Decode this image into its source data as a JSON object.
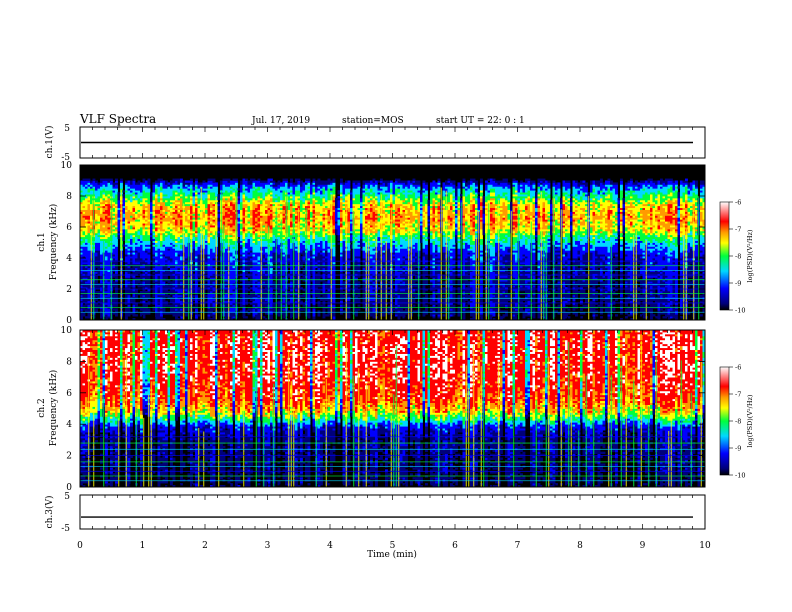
{
  "header": {
    "title": "VLF Spectra",
    "date": "Jul. 17, 2019",
    "station": "station=MOS",
    "start": "start UT = 22: 0 : 1"
  },
  "colors": {
    "black": "#000000",
    "navy": "#00007a",
    "blue": "#0000ff",
    "cyan": "#00d8ff",
    "green": "#00ff3c",
    "yellow": "#ffff00",
    "orange": "#ff9a00",
    "red": "#ff0000",
    "white": "#ffffff"
  },
  "chart_data": [
    {
      "type": "line",
      "id": "ch1-waveform",
      "ylabel": "ch.1(V)",
      "ylim": [
        -5,
        5
      ],
      "yticks": [
        "5",
        "-5"
      ],
      "xlim": [
        0,
        10
      ],
      "series": [
        {
          "values": [
            0,
            0
          ]
        }
      ]
    },
    {
      "type": "heatmap",
      "id": "ch1-spectrogram",
      "ylabel": "ch.1\nFrequency (kHz)",
      "ylim": [
        0,
        10
      ],
      "yticks": [
        "0",
        "2",
        "4",
        "6",
        "8",
        "10"
      ],
      "xlim": [
        0,
        10
      ],
      "colorbar": {
        "label": "log(PSD)(V²/Hz)",
        "ticks": [
          "-6",
          "-7",
          "-8",
          "-9",
          "-10"
        ],
        "range": [
          -10,
          -6
        ]
      },
      "noise_floor_khz": 9.1,
      "band_center_khz": 6.6,
      "emission_profile": [
        [
          0,
          -10
        ],
        [
          0.4,
          -9.6
        ],
        [
          1.2,
          -9.4
        ],
        [
          2.8,
          -9.3
        ],
        [
          4.2,
          -9.0
        ],
        [
          5.2,
          -8.0
        ],
        [
          5.8,
          -7.2
        ],
        [
          6.6,
          -6.9
        ],
        [
          7.4,
          -7.1
        ],
        [
          8.0,
          -7.8
        ],
        [
          8.6,
          -8.5
        ],
        [
          9.0,
          -9.5
        ],
        [
          9.1,
          -10
        ]
      ],
      "interference_lines_khz": [
        0.5,
        0.8,
        1.1,
        1.4,
        1.7,
        2.0,
        2.3,
        2.6,
        2.9,
        3.2,
        3.5,
        3.8
      ]
    },
    {
      "type": "heatmap",
      "id": "ch2-spectrogram",
      "ylabel": "ch.2\nFrequency (kHz)",
      "ylim": [
        0,
        10
      ],
      "yticks": [
        "0",
        "2",
        "4",
        "6",
        "8",
        "10"
      ],
      "xlim": [
        0,
        10
      ],
      "colorbar": {
        "label": "log(PSD)(V²/Hz)",
        "ticks": [
          "-6",
          "-7",
          "-8",
          "-9",
          "-10"
        ],
        "range": [
          -10,
          -6
        ]
      },
      "emission_profile": [
        [
          0,
          -9.8
        ],
        [
          1.5,
          -9.6
        ],
        [
          3.2,
          -9.4
        ],
        [
          3.8,
          -9.0
        ],
        [
          4.3,
          -8.0
        ],
        [
          4.8,
          -7.2
        ],
        [
          5.6,
          -6.6
        ],
        [
          7.0,
          -6.3
        ],
        [
          8.5,
          -6.2
        ],
        [
          10,
          -6.3
        ]
      ],
      "interference_lines_khz": [
        0.4,
        0.7,
        1.0,
        1.3,
        1.6,
        2.0,
        2.4,
        2.8,
        3.2
      ]
    },
    {
      "type": "line",
      "id": "ch3-waveform",
      "ylabel": "ch.3(V)",
      "ylim": [
        -5,
        5
      ],
      "yticks": [
        "5",
        "-5"
      ],
      "xlim": [
        0,
        10
      ],
      "xlabel": "Time (min)",
      "xticks": [
        "0",
        "1",
        "2",
        "3",
        "4",
        "5",
        "6",
        "7",
        "8",
        "9",
        "10"
      ],
      "series": [
        {
          "values": [
            -1.5,
            -1.5
          ]
        }
      ]
    }
  ]
}
